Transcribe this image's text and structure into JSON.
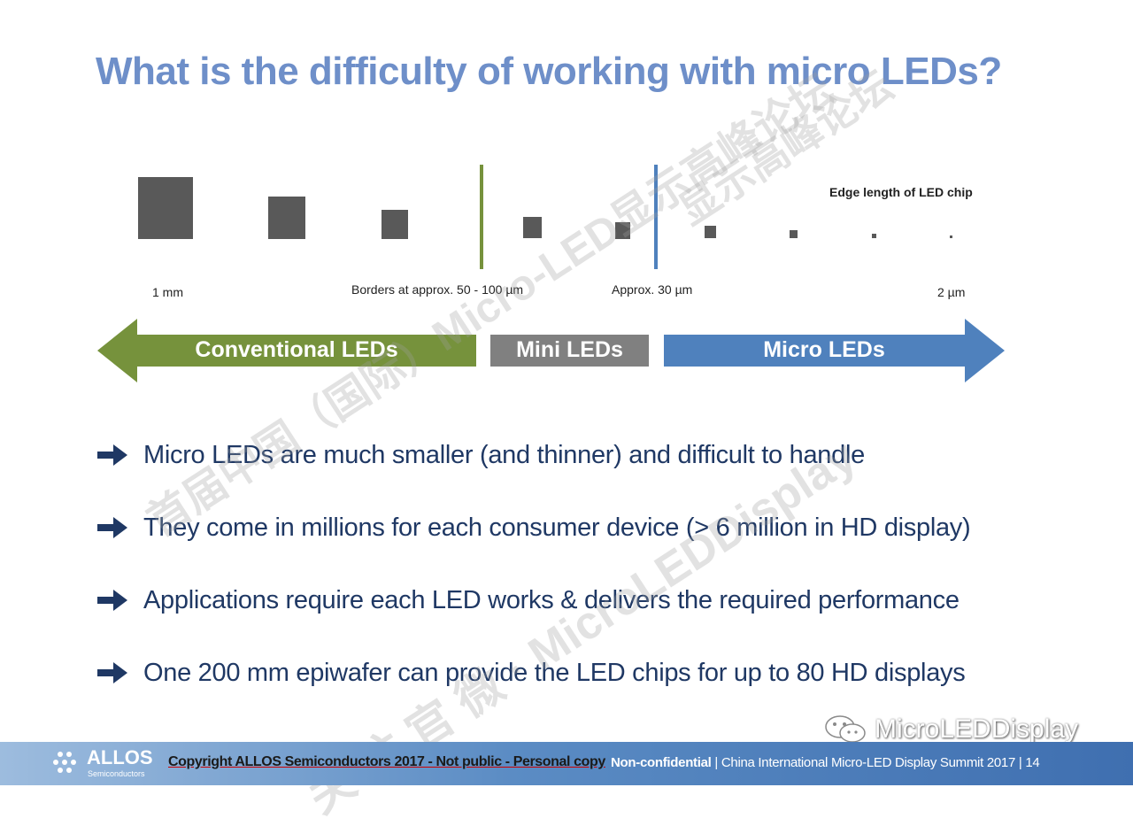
{
  "slide": {
    "title": "What is the difficulty of working with micro LEDs?"
  },
  "scale": {
    "edge_label": "Edge length of LED chip",
    "label_left": "1 mm",
    "label_border": "Borders at approx. 50 - 100 µm",
    "label_approx30": "Approx. 30 µm",
    "label_right": "2 µm",
    "bands": {
      "conventional": "Conventional LEDs",
      "mini": "Mini LEDs",
      "micro": "Micro LEDs"
    },
    "colors": {
      "chip": "#595959",
      "conventional": "#76923c",
      "mini": "#808080",
      "micro": "#4f81bd"
    }
  },
  "bullets": [
    {
      "icon": "arrow-right-icon",
      "text": "Micro LEDs are much smaller (and thinner) and difficult to handle"
    },
    {
      "icon": "arrow-right-icon",
      "text": "They come in millions for each consumer device (> 6 million in HD display)"
    },
    {
      "icon": "arrow-right-icon",
      "text": "Applications require each LED works & delivers the required performance"
    },
    {
      "icon": "arrow-right-icon",
      "text": "One 200 mm epiwafer can provide the LED chips for up to 80 HD displays"
    }
  ],
  "watermarks": {
    "diagonal_1": "显示高峰论坛",
    "diagonal_2": "首届中国（国际）Micro-LED显示高峰论坛",
    "diagonal_3": "关 注 官 微 · MicroLEDDisplay"
  },
  "wechat_mark": "MicroLEDDisplay",
  "footer": {
    "logo_name": "ALLOS",
    "logo_sub": "Semiconductors",
    "copyright": "Copyright ALLOS Semiconductors 2017 - Not public - Personal copy",
    "confidentiality": "Non-confidential",
    "event": "China International Micro-LED Display Summit  2017",
    "page": "14"
  }
}
